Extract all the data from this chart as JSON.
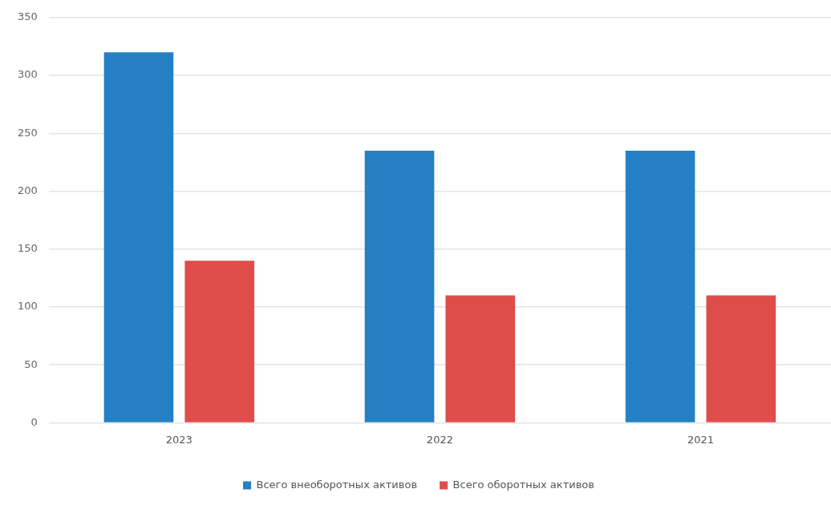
{
  "chart_data": {
    "type": "bar",
    "categories": [
      "2023",
      "2022",
      "2021"
    ],
    "series": [
      {
        "name": "Всего внеоборотных активов",
        "color": "#2580c3",
        "values": [
          320,
          235,
          235
        ]
      },
      {
        "name": "Всего оборотных активов",
        "color": "#de4d4a",
        "values": [
          140,
          110,
          110
        ]
      }
    ],
    "ylim": [
      0,
      350
    ],
    "yticks": [
      0,
      50,
      100,
      150,
      200,
      250,
      300,
      350
    ],
    "grid": "y",
    "legend": "bottom"
  }
}
